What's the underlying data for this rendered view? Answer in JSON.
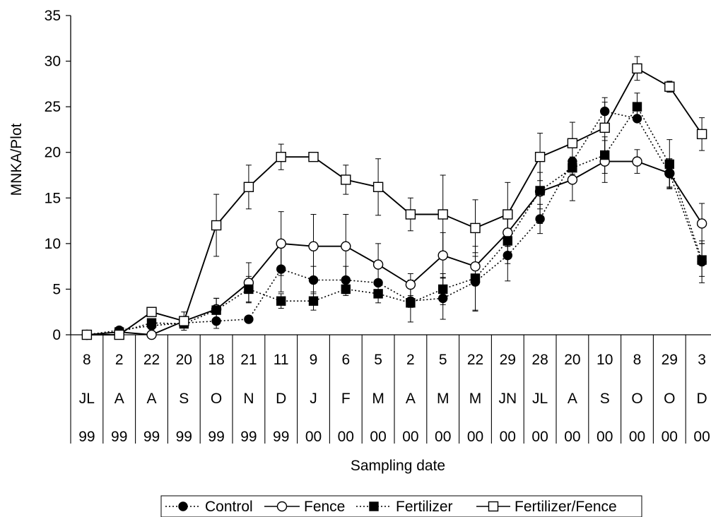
{
  "chart_data": {
    "type": "line",
    "ylabel": "MNKA/Plot",
    "xlabel": "Sampling date",
    "ylim": [
      0,
      35
    ],
    "yticks": [
      0,
      5,
      10,
      15,
      20,
      25,
      30,
      35
    ],
    "grid": false,
    "legend_position": "bottom",
    "categories": [
      {
        "day": "8",
        "month": "JL",
        "year": "99"
      },
      {
        "day": "2",
        "month": "A",
        "year": "99"
      },
      {
        "day": "22",
        "month": "A",
        "year": "99"
      },
      {
        "day": "20",
        "month": "S",
        "year": "99"
      },
      {
        "day": "18",
        "month": "O",
        "year": "99"
      },
      {
        "day": "21",
        "month": "N",
        "year": "99"
      },
      {
        "day": "11",
        "month": "D",
        "year": "99"
      },
      {
        "day": "9",
        "month": "J",
        "year": "00"
      },
      {
        "day": "6",
        "month": "F",
        "year": "00"
      },
      {
        "day": "5",
        "month": "M",
        "year": "00"
      },
      {
        "day": "2",
        "month": "A",
        "year": "00"
      },
      {
        "day": "5",
        "month": "M",
        "year": "00"
      },
      {
        "day": "22",
        "month": "M",
        "year": "00"
      },
      {
        "day": "29",
        "month": "JN",
        "year": "00"
      },
      {
        "day": "28",
        "month": "JL",
        "year": "00"
      },
      {
        "day": "20",
        "month": "A",
        "year": "00"
      },
      {
        "day": "10",
        "month": "S",
        "year": "00"
      },
      {
        "day": "8",
        "month": "O",
        "year": "00"
      },
      {
        "day": "29",
        "month": "O",
        "year": "00"
      },
      {
        "day": "3",
        "month": "D",
        "year": "00"
      }
    ],
    "series": [
      {
        "name": "Control",
        "marker": "filled-circle",
        "line": "dotted",
        "values": [
          0,
          0.5,
          1.0,
          1.3,
          1.5,
          1.7,
          7.2,
          6.0,
          6.0,
          5.7,
          3.7,
          4.0,
          5.8,
          8.7,
          12.7,
          19.0,
          24.5,
          23.7,
          17.7,
          8.0
        ],
        "errors": [
          0,
          0,
          0.3,
          0.5,
          0.8,
          0.3,
          2.5,
          1.5,
          1.5,
          0,
          2.3,
          2.3,
          3.2,
          2.8,
          1.6,
          0.5,
          1.5,
          0,
          1.5,
          2.3
        ]
      },
      {
        "name": "Fence",
        "marker": "open-circle",
        "line": "solid",
        "values": [
          0,
          0.3,
          0,
          1.5,
          2.8,
          5.7,
          10.0,
          9.7,
          9.7,
          7.7,
          5.5,
          8.7,
          7.5,
          11.2,
          15.7,
          17.0,
          19.0,
          19.0,
          17.7,
          12.2
        ],
        "errors": [
          0,
          0,
          0,
          0.5,
          1.2,
          2.2,
          3.5,
          3.5,
          3.5,
          2.3,
          1.2,
          2.5,
          0,
          1.5,
          3.5,
          2.3,
          2.3,
          1.3,
          1.6,
          2.2
        ]
      },
      {
        "name": "Fertilizer",
        "marker": "filled-square",
        "line": "dotted",
        "values": [
          0,
          0.3,
          1.3,
          1.2,
          2.7,
          5.0,
          3.7,
          3.7,
          5.0,
          4.5,
          3.5,
          5.0,
          6.2,
          10.3,
          15.8,
          18.3,
          19.7,
          25.0,
          18.7,
          8.2
        ],
        "errors": [
          0,
          0,
          0.3,
          0.4,
          1.3,
          1.4,
          0.8,
          1.0,
          0.7,
          1.0,
          0.5,
          1.7,
          3.5,
          2.5,
          2.0,
          0.7,
          2.0,
          1.5,
          2.7,
          1.8
        ]
      },
      {
        "name": "Fertilizer/Fence",
        "marker": "open-square",
        "line": "solid",
        "values": [
          0,
          0,
          2.5,
          1.5,
          12.0,
          16.2,
          19.5,
          19.5,
          17.0,
          16.2,
          13.2,
          13.2,
          11.7,
          13.2,
          19.5,
          21.0,
          22.7,
          29.2,
          27.2,
          22.0
        ],
        "errors": [
          0,
          0,
          0.3,
          1.0,
          3.4,
          2.4,
          1.4,
          0.3,
          1.6,
          3.1,
          1.8,
          4.3,
          3.1,
          3.5,
          2.6,
          2.3,
          2.8,
          1.3,
          0.6,
          1.8
        ]
      }
    ]
  }
}
